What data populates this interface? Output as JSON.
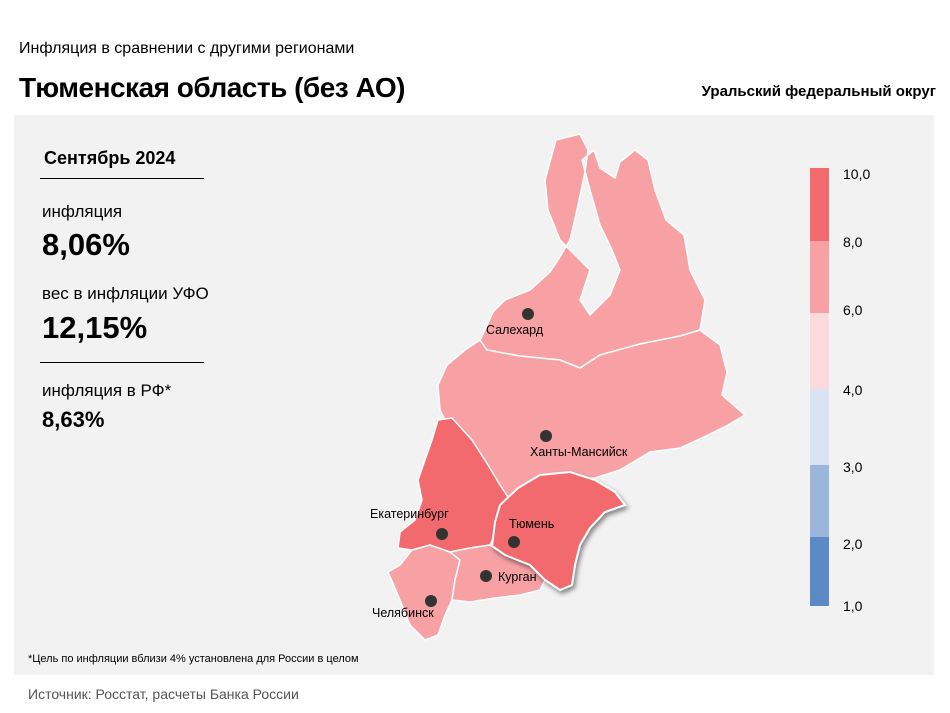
{
  "header": {
    "subtitle": "Инфляция  в сравнении  с другими  регионами",
    "title": "Тюменская область (без АО)",
    "district": "Уральский федеральный округ"
  },
  "stats": {
    "period": "Сентябрь 2024",
    "inflation_label": "инфляция",
    "inflation_value": "8,06%",
    "weight_label": "вес в инфляции  УФО",
    "weight_value": "12,15%",
    "rf_label": "инфляция  в РФ*",
    "rf_value": "8,63%"
  },
  "legend": {
    "ticks": [
      "10,0",
      "8,0",
      "6,0",
      "4,0",
      "3,0",
      "2,0",
      "1,0"
    ],
    "bins": [
      {
        "range": "8,0–10,0",
        "color": "#f26a6e"
      },
      {
        "range": "6,0–8,0",
        "color": "#f7a1a5"
      },
      {
        "range": "4,0–6,0",
        "color": "#fadadd"
      },
      {
        "range": "3,0–4,0",
        "color": "#d9e3f3"
      },
      {
        "range": "2,0–3,0",
        "color": "#9ab6dd"
      },
      {
        "range": "1,0–2,0",
        "color": "#5b8ac7"
      }
    ]
  },
  "cities": {
    "salekhard": "Салехард",
    "khanty": "Ханты-Мансийск",
    "ekaterinburg": "Екатеринбург",
    "tyumen": "Тюмень",
    "kurgan": "Курган",
    "chelyabinsk": "Челябинск"
  },
  "regions": {
    "yamal": {
      "color": "#f7a1a5",
      "bin": "6,0–8,0"
    },
    "khmao": {
      "color": "#f7a1a5",
      "bin": "6,0–8,0"
    },
    "sverdlovsk": {
      "color": "#f26a6e",
      "bin": "8,0–10,0"
    },
    "tyumen": {
      "color": "#f26a6e",
      "bin": "8,0–10,0",
      "highlighted": true
    },
    "kurgan": {
      "color": "#f7a1a5",
      "bin": "6,0–8,0"
    },
    "chelyabinsk": {
      "color": "#f7a1a5",
      "bin": "6,0–8,0"
    }
  },
  "footer": {
    "footnote": "*Цель по инфляции вблизи 4% установлена для России в целом",
    "source": "Источник: Росстат, расчеты Банка России"
  }
}
